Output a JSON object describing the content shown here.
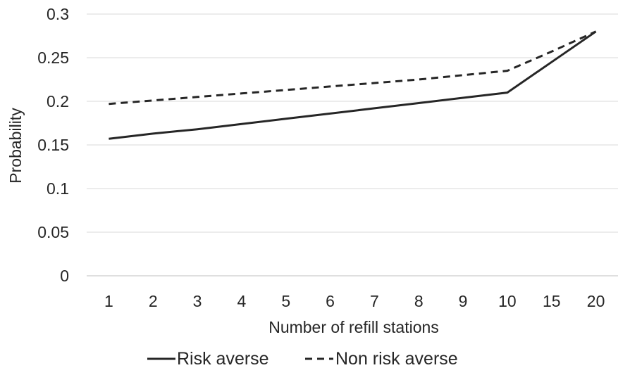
{
  "chart_data": {
    "type": "line",
    "title": "",
    "xlabel": "Number of refill stations",
    "ylabel": "Probability",
    "categories": [
      "1",
      "2",
      "3",
      "4",
      "5",
      "6",
      "7",
      "8",
      "9",
      "10",
      "15",
      "20"
    ],
    "y_ticks": [
      "0",
      "0.05",
      "0.1",
      "0.15",
      "0.2",
      "0.25",
      "0.3"
    ],
    "ylim": [
      0,
      0.3
    ],
    "grid": "horizontal",
    "legend_position": "bottom",
    "series": [
      {
        "name": "Risk averse",
        "style": "solid",
        "color": "#262626",
        "values": [
          0.157,
          0.163,
          0.168,
          0.174,
          0.18,
          0.186,
          0.192,
          0.198,
          0.204,
          0.21,
          0.245,
          0.28
        ]
      },
      {
        "name": "Non risk averse",
        "style": "dashed",
        "color": "#262626",
        "values": [
          0.197,
          0.201,
          0.205,
          0.209,
          0.213,
          0.217,
          0.221,
          0.225,
          0.23,
          0.235,
          0.257,
          0.28
        ]
      }
    ]
  }
}
